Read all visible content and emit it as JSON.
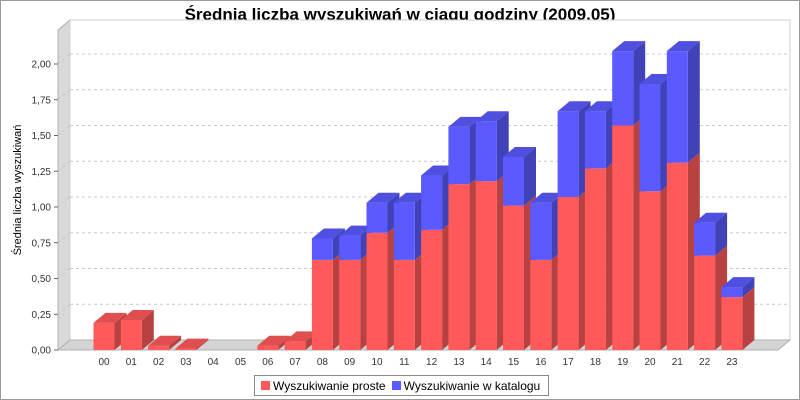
{
  "chart_data": {
    "type": "bar",
    "stacked": true,
    "three_d": true,
    "title": "Średnia liczba wyszukiwań w ciągu godziny (2009.05)",
    "xlabel": "",
    "ylabel": "Średnia liczba wyszukiwań",
    "ylim": [
      0,
      2.25
    ],
    "yticks": [
      "0,00",
      "0,25",
      "0,50",
      "0,75",
      "1,00",
      "1,25",
      "1,50",
      "1,75",
      "2,00"
    ],
    "grid": true,
    "legend_position": "bottom",
    "categories": [
      "00",
      "01",
      "02",
      "03",
      "04",
      "05",
      "06",
      "07",
      "08",
      "09",
      "10",
      "11",
      "12",
      "13",
      "14",
      "15",
      "16",
      "17",
      "18",
      "19",
      "20",
      "21",
      "22",
      "23"
    ],
    "series": [
      {
        "name": "Wyszukiwanie proste",
        "color": "#ff5a5a",
        "values": [
          0.19,
          0.21,
          0.03,
          0.01,
          0,
          0,
          0.03,
          0.06,
          0.63,
          0.63,
          0.82,
          0.63,
          0.84,
          1.16,
          1.18,
          1.01,
          0.63,
          1.07,
          1.27,
          1.57,
          1.11,
          1.31,
          0.66,
          0.37
        ]
      },
      {
        "name": "Wyszukiwanie w katalogu",
        "color": "#5a5aff",
        "values": [
          0,
          0,
          0,
          0,
          0,
          0,
          0,
          0,
          0.15,
          0.17,
          0.21,
          0.4,
          0.38,
          0.4,
          0.42,
          0.34,
          0.4,
          0.6,
          0.4,
          0.52,
          0.75,
          0.78,
          0.23,
          0.07
        ]
      }
    ]
  }
}
